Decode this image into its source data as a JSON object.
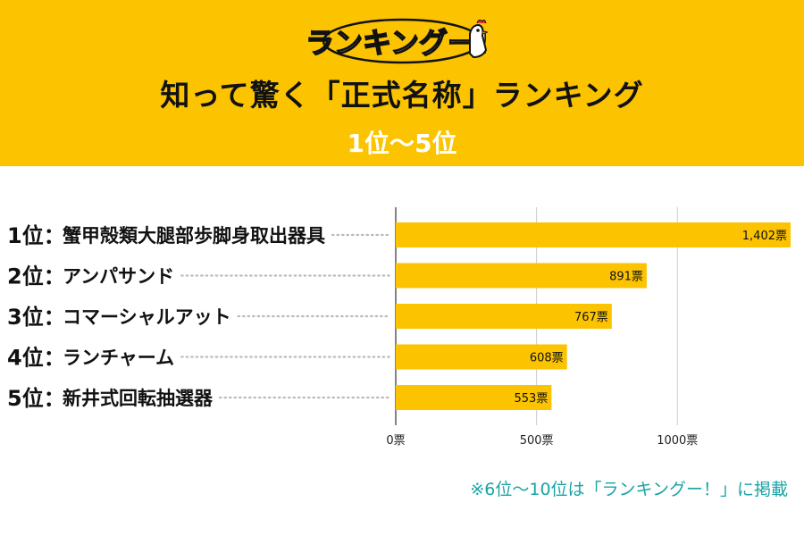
{
  "logo_text": "ランキングー!",
  "header": {
    "title": "知って驚く「正式名称」ランキング",
    "subtitle": "1位〜5位"
  },
  "colors": {
    "header_bg": "#fbc300",
    "bar": "#fbc300",
    "note": "#19a3a5"
  },
  "chart_data": {
    "type": "bar",
    "orientation": "horizontal",
    "categories": [
      "蟹甲殻類大腿部歩脚身取出器具",
      "アンパサンド",
      "コマーシャルアット",
      "ランチャーム",
      "新井式回転抽選器"
    ],
    "ranks": [
      "1位：",
      "2位：",
      "3位：",
      "4位：",
      "5位："
    ],
    "values": [
      1402,
      891,
      767,
      608,
      553
    ],
    "value_labels": [
      "1,402票",
      "891票",
      "767票",
      "608票",
      "553票"
    ],
    "xlim": [
      0,
      1402
    ],
    "xticks": [
      0,
      500,
      1000
    ],
    "xtick_labels": [
      "0票",
      "500票",
      "1000票"
    ],
    "grid": true
  },
  "footer_note": "※6位〜10位は「ランキングー！」に掲載"
}
